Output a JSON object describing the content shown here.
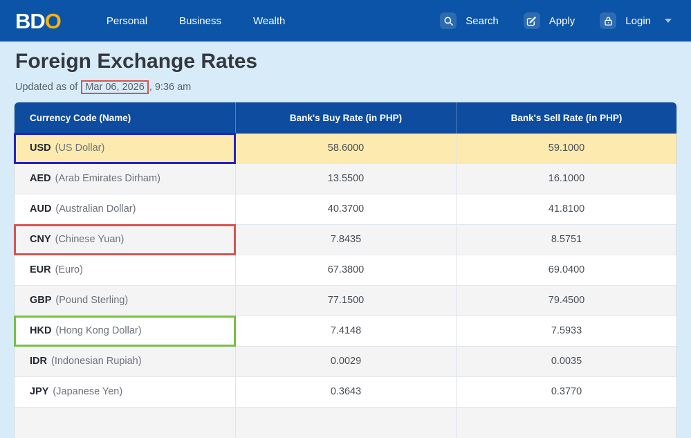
{
  "navbar": {
    "logo": {
      "part1": "BD",
      "part2": "O"
    },
    "links": [
      {
        "label": "Personal"
      },
      {
        "label": "Business"
      },
      {
        "label": "Wealth"
      }
    ],
    "actions": {
      "search": {
        "label": "Search"
      },
      "apply": {
        "label": "Apply"
      },
      "login": {
        "label": "Login"
      }
    }
  },
  "page": {
    "title": "Foreign Exchange Rates",
    "updated_prefix": "Updated as of",
    "updated_date": "Mar 06, 2026",
    "updated_suffix": ", 9:36 am"
  },
  "table": {
    "headers": [
      "Currency Code (Name)",
      "Bank's Buy Rate (in PHP)",
      "Bank's Sell Rate (in PHP)"
    ],
    "rows": [
      {
        "code": "USD",
        "name": "(US Dollar)",
        "buy": "58.6000",
        "sell": "59.1000",
        "shade": "yellow",
        "annotation": "blue"
      },
      {
        "code": "AED",
        "name": "(Arab Emirates Dirham)",
        "buy": "13.5500",
        "sell": "16.1000",
        "shade": "gray"
      },
      {
        "code": "AUD",
        "name": "(Australian Dollar)",
        "buy": "40.3700",
        "sell": "41.8100",
        "shade": "white"
      },
      {
        "code": "CNY",
        "name": "(Chinese Yuan)",
        "buy": "7.8435",
        "sell": "8.5751",
        "shade": "gray",
        "annotation": "red"
      },
      {
        "code": "EUR",
        "name": "(Euro)",
        "buy": "67.3800",
        "sell": "69.0400",
        "shade": "white"
      },
      {
        "code": "GBP",
        "name": "(Pound Sterling)",
        "buy": "77.1500",
        "sell": "79.4500",
        "shade": "gray"
      },
      {
        "code": "HKD",
        "name": "(Hong Kong Dollar)",
        "buy": "7.4148",
        "sell": "7.5933",
        "shade": "white",
        "annotation": "green"
      },
      {
        "code": "IDR",
        "name": "(Indonesian Rupiah)",
        "buy": "0.0029",
        "sell": "0.0035",
        "shade": "gray"
      },
      {
        "code": "JPY",
        "name": "(Japanese Yen)",
        "buy": "0.3643",
        "sell": "0.3770",
        "shade": "white"
      }
    ],
    "partial_row": {
      "shade": "gray"
    },
    "annotation_colors": {
      "blue": "#2323c8",
      "red": "#d9534f",
      "green": "#76c043"
    }
  },
  "colors": {
    "navbar_bg": "#0b54a7",
    "logo_gold": "#f6b40d",
    "page_bg": "#d8ebf8",
    "header_bg": "#0d4c9e",
    "usd_row": "#fdeaaf",
    "row_alt": "#f4f4f5"
  }
}
